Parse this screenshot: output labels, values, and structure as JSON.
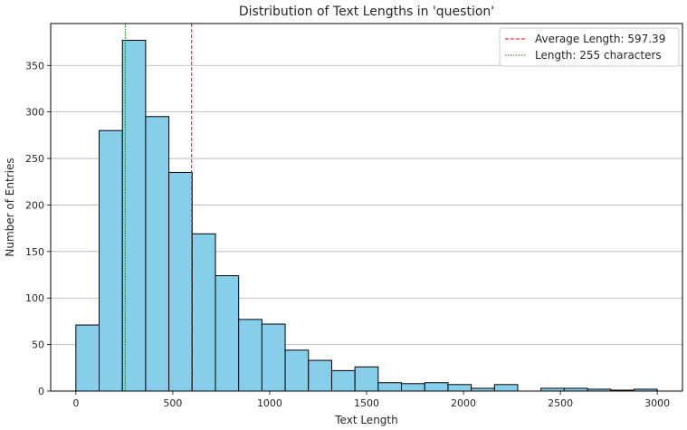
{
  "chart_data": {
    "type": "bar",
    "title": "Distribution of Text Lengths in 'question'",
    "xlabel": "Text Length",
    "ylabel": "Number of Entries",
    "xlim": [
      -130,
      3130
    ],
    "ylim": [
      0,
      395
    ],
    "xticks": [
      0,
      500,
      1000,
      1500,
      2000,
      2500,
      3000
    ],
    "yticks": [
      0,
      50,
      100,
      150,
      200,
      250,
      300,
      350
    ],
    "grid": "y",
    "bin_edges": [
      0,
      120,
      240,
      360,
      480,
      600,
      720,
      840,
      960,
      1080,
      1200,
      1320,
      1440,
      1560,
      1680,
      1800,
      1920,
      2040,
      2160,
      2280,
      2400,
      2520,
      2640,
      2760,
      2880,
      3000
    ],
    "counts": [
      71,
      280,
      377,
      295,
      235,
      169,
      124,
      77,
      72,
      44,
      33,
      22,
      26,
      9,
      8,
      9,
      7,
      3,
      7,
      0,
      3,
      3,
      2,
      1,
      2
    ],
    "bar_color": "#87ceeb",
    "bar_edge_color": "#000000",
    "reference_lines": [
      {
        "x": 597.39,
        "label": "Average Length: 597.39",
        "color": "#ff0000",
        "style": "dashed"
      },
      {
        "x": 255,
        "label": "Length: 255 characters",
        "color": "#008000",
        "style": "dotted"
      }
    ],
    "legend": {
      "position": "top-right"
    }
  }
}
